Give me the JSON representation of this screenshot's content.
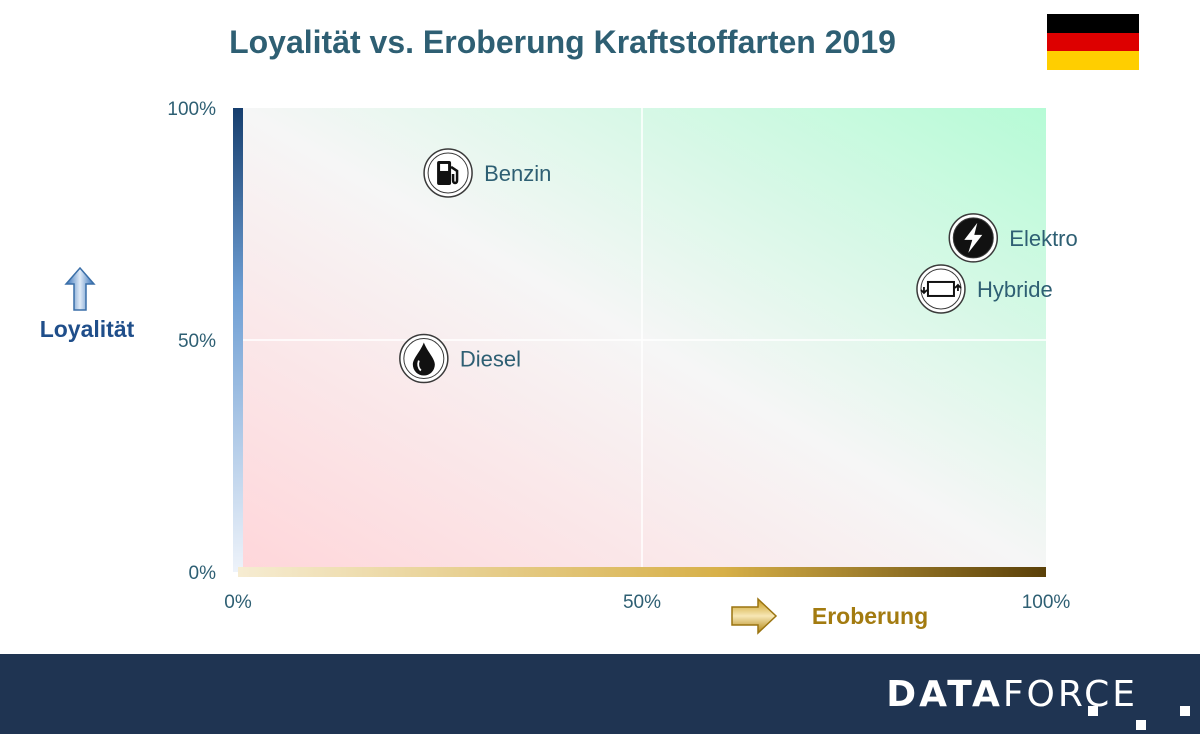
{
  "header": {
    "title": "Loyalität vs. Eroberung Kraftstoffarten 2019"
  },
  "flag": {
    "colors": [
      "#000000",
      "#dd0000",
      "#ffce00"
    ]
  },
  "chart_data": {
    "type": "scatter",
    "title": "Loyalität vs. Eroberung Kraftstoffarten 2019",
    "xlabel": "Eroberung",
    "ylabel": "Loyalität",
    "xlim": [
      0,
      100
    ],
    "ylim": [
      0,
      100
    ],
    "x_ticks": [
      "0%",
      "50%",
      "100%"
    ],
    "y_ticks": [
      "0%",
      "50%",
      "100%"
    ],
    "grid": true,
    "points": [
      {
        "label": "Benzin",
        "x": 26,
        "y": 86,
        "icon": "fuel-pump-icon"
      },
      {
        "label": "Elektro",
        "x": 91,
        "y": 72,
        "icon": "lightning-icon"
      },
      {
        "label": "Hybride",
        "x": 87,
        "y": 61,
        "icon": "hybrid-battery-icon"
      },
      {
        "label": "Diesel",
        "x": 23,
        "y": 46,
        "icon": "oil-drop-icon"
      }
    ]
  },
  "colors": {
    "title": "#2e5f73",
    "label": "#2e5f73",
    "loyalty_axis": "#1f4e8a",
    "conquest_axis": "#a37b10",
    "footer": "#1f3452"
  },
  "footer": {
    "brand_bold": "DATA",
    "brand_light": "FORCE"
  }
}
